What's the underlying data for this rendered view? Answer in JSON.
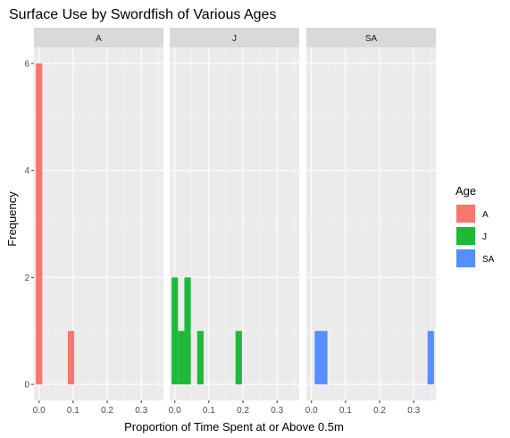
{
  "chart_data": {
    "type": "bar",
    "title": "Surface Use by Swordfish of Various Ages",
    "xlabel": "Proportion of Time Spent at or Above 0.5m",
    "ylabel": "Frequency",
    "xlim": [
      -0.015,
      0.365
    ],
    "ylim": [
      -0.3,
      6.3
    ],
    "x_ticks": [
      0.0,
      0.1,
      0.2,
      0.3
    ],
    "x_tick_labels": [
      "0.0",
      "0.1",
      "0.2",
      "0.3"
    ],
    "y_ticks": [
      0,
      2,
      4,
      6
    ],
    "y_tick_labels": [
      "0",
      "2",
      "4",
      "6"
    ],
    "bin_width": 0.01875,
    "grid": true,
    "legend": {
      "title": "Age",
      "position": "right",
      "entries": [
        {
          "label": "A",
          "color": "#F8766D"
        },
        {
          "label": "J",
          "color": "#1DBA38"
        },
        {
          "label": "SA",
          "color": "#568FFF"
        }
      ]
    },
    "panels": [
      {
        "label": "A",
        "color": "#F8766D",
        "bins": [
          {
            "x": 0.0,
            "count": 6
          },
          {
            "x": 0.09375,
            "count": 1
          }
        ]
      },
      {
        "label": "J",
        "color": "#1DBA38",
        "bins": [
          {
            "x": 0.0,
            "count": 2
          },
          {
            "x": 0.01875,
            "count": 1
          },
          {
            "x": 0.0375,
            "count": 2
          },
          {
            "x": 0.075,
            "count": 1
          },
          {
            "x": 0.1875,
            "count": 1
          }
        ]
      },
      {
        "label": "SA",
        "color": "#568FFF",
        "bins": [
          {
            "x": 0.01875,
            "count": 1
          },
          {
            "x": 0.0375,
            "count": 1
          },
          {
            "x": 0.35,
            "count": 1
          }
        ]
      }
    ]
  }
}
